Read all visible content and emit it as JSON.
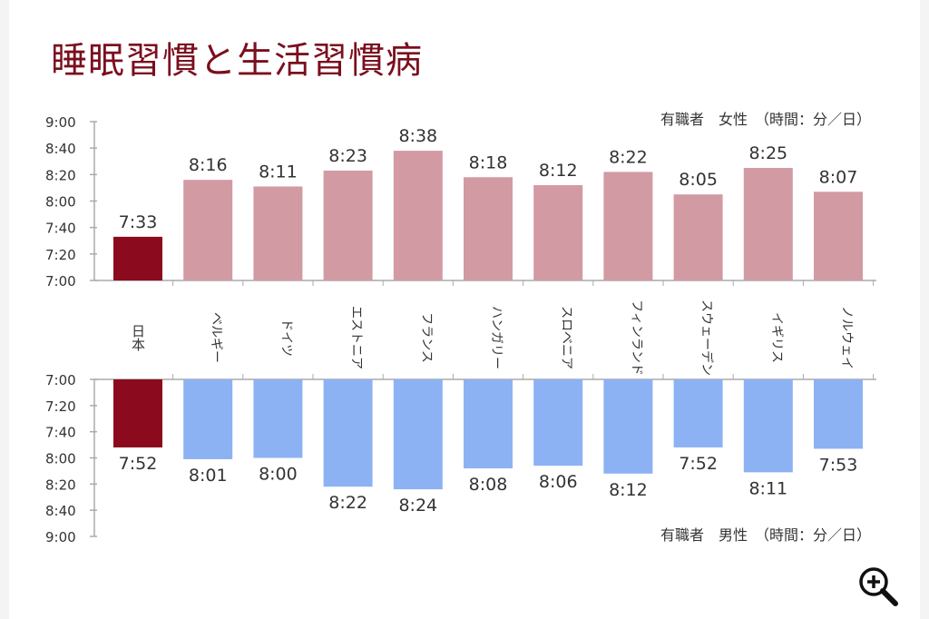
{
  "page": {
    "title": "睡眠習慣と生活習慣病"
  },
  "colors": {
    "highlight": "#8c0a1e",
    "female": "#d29aa3",
    "male": "#8cb2f4",
    "axis": "#aaaaaa",
    "text": "#333333",
    "title": "#7b0f1e"
  },
  "icons": {
    "zoom": "zoom-in-icon"
  },
  "chart_data": [
    {
      "type": "bar",
      "subtitle": "有職者　女性　（時間：分／日）",
      "categories": [
        "日本",
        "ベルギー",
        "ドイツ",
        "エストニア",
        "フランス",
        "ハンガリー",
        "スロベニア",
        "フィンランド",
        "スウェーデン",
        "イギリス",
        "ノルウェイ"
      ],
      "series": [
        {
          "values": [
            "7:33",
            "8:16",
            "8:11",
            "8:23",
            "8:38",
            "8:18",
            "8:12",
            "8:22",
            "8:05",
            "8:25",
            "8:07"
          ]
        }
      ],
      "y_ticks": [
        "7:00",
        "7:20",
        "7:40",
        "8:00",
        "8:20",
        "8:40",
        "9:00"
      ],
      "ylim": [
        "7:00",
        "9:00"
      ],
      "highlight_index": 0
    },
    {
      "type": "bar",
      "subtitle": "有職者　男性　（時間：分／日）",
      "categories": [
        "日本",
        "ベルギー",
        "ドイツ",
        "エストニア",
        "フランス",
        "ハンガリー",
        "スロベニア",
        "フィンランド",
        "スウェーデン",
        "イギリス",
        "ノルウェイ"
      ],
      "series": [
        {
          "values": [
            "7:52",
            "8:01",
            "8:00",
            "8:22",
            "8:24",
            "8:08",
            "8:06",
            "8:12",
            "7:52",
            "8:11",
            "7:53"
          ]
        }
      ],
      "y_ticks": [
        "7:00",
        "7:20",
        "7:40",
        "8:00",
        "8:20",
        "8:40",
        "9:00"
      ],
      "ylim": [
        "7:00",
        "9:00"
      ],
      "y_inverted": true,
      "highlight_index": 0
    }
  ]
}
